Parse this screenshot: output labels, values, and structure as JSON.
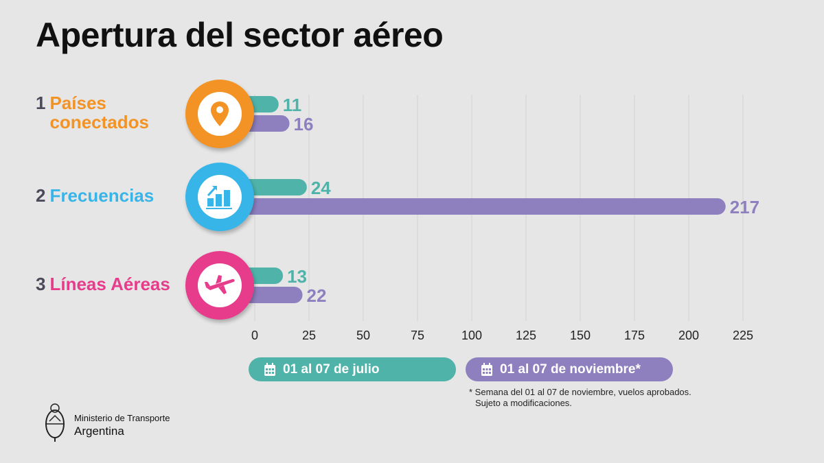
{
  "title": "Apertura del sector aéreo",
  "chart_data": {
    "type": "bar",
    "orientation": "horizontal",
    "categories": [
      {
        "num": "1",
        "label_lines": [
          "Países",
          "conectados"
        ],
        "color": "#f39325",
        "icon": "location-pin-icon"
      },
      {
        "num": "2",
        "label_lines": [
          "Frecuencias"
        ],
        "color": "#38b5e8",
        "icon": "growth-chart-icon"
      },
      {
        "num": "3",
        "label_lines": [
          "Líneas Aéreas"
        ],
        "color": "#e63c8b",
        "icon": "airplane-icon"
      }
    ],
    "series": [
      {
        "name": "01 al 07 de julio",
        "color": "#4fb3a9",
        "values": [
          11,
          24,
          13
        ]
      },
      {
        "name": "01 al 07 de noviembre*",
        "color": "#8e80bf",
        "values": [
          16,
          217,
          22
        ]
      }
    ],
    "xlim": [
      0,
      225
    ],
    "xticks": [
      "0",
      "25",
      "50",
      "75",
      "100",
      "125",
      "150",
      "175",
      "200",
      "225"
    ],
    "grid": true,
    "legend": "bottom"
  },
  "footnote": [
    "* Semana del 01 al 07 de noviembre, vuelos aprobados.",
    "Sujeto a modificaciones."
  ],
  "logo": {
    "line1": "Ministerio de Transporte",
    "line2": "Argentina"
  }
}
